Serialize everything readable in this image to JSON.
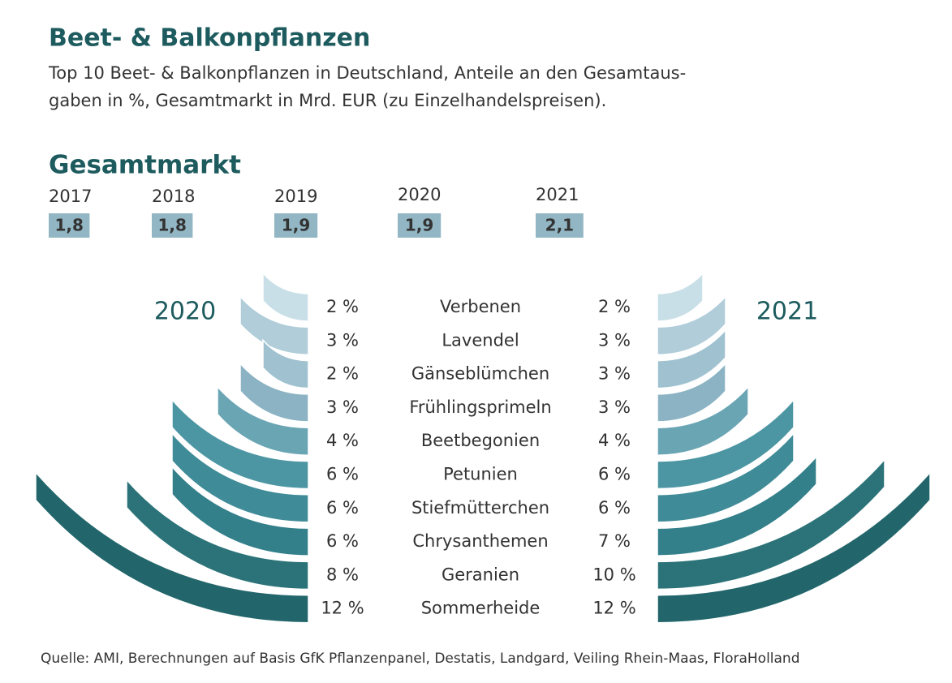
{
  "title": "Beet- & Balkonpflanzen",
  "subtitle": [
    "Top 10 Beet- & Balkonpflanzen in Deutschland, Anteile an den Gesamtaus-",
    "gaben in %, Gesamtmarkt in Mrd. EUR (zu Einzelhandelspreisen)."
  ],
  "source": "Quelle: AMI, Berechnungen auf Basis GfK Pflanzenpanel, Destatis, Landgard, Veiling Rhein-Maas, FloraHolland",
  "chart_data": [
    {
      "type": "box-label",
      "title": "Gesamtmarkt",
      "categories": [
        "2017",
        "2018",
        "2019",
        "2020",
        "2021"
      ],
      "values": [
        1.8,
        1.8,
        1.9,
        1.9,
        2.1
      ],
      "value_labels": [
        "1,8",
        "1,8",
        "1,9",
        "1,9",
        "2,1"
      ],
      "color": "#7fa9b8"
    },
    {
      "type": "butterfly",
      "categories": [
        "Verbenen",
        "Lavendel",
        "Gänseblümchen",
        "Frühlingsprimeln",
        "Beetbegonien",
        "Petunien",
        "Stiefmütterchen",
        "Chrysanthemen",
        "Geranien",
        "Sommerheide"
      ],
      "colors": [
        "#c9dfe7",
        "#b0cdd9",
        "#a0c2d0",
        "#8bb3c3",
        "#6aa5b4",
        "#4c96a3",
        "#3f8b97",
        "#33808a",
        "#2b7378",
        "#22666b"
      ],
      "series": [
        {
          "name": "2020",
          "values": [
            2,
            3,
            2,
            3,
            4,
            6,
            6,
            6,
            8,
            12
          ],
          "value_labels": [
            "2 %",
            "3 %",
            "2 %",
            "3 %",
            "4 %",
            "6 %",
            "6 %",
            "6 %",
            "8 %",
            "12 %"
          ]
        },
        {
          "name": "2021",
          "values": [
            2,
            3,
            3,
            3,
            4,
            6,
            6,
            7,
            10,
            12
          ],
          "value_labels": [
            "2 %",
            "3 %",
            "3 %",
            "3 %",
            "4 %",
            "6 %",
            "6 %",
            "7 %",
            "10 %",
            "12 %"
          ]
        }
      ]
    }
  ]
}
